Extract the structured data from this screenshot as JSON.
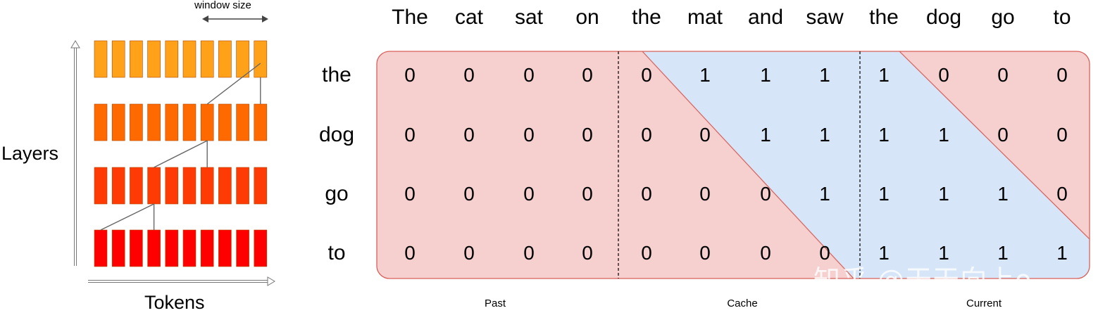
{
  "left_diagram": {
    "window_label": "window size",
    "layers_label": "Layers",
    "tokens_label": "Tokens",
    "layer_colors": [
      "#ff0000",
      "#ff3b05",
      "#ff6a00",
      "#ffa21a"
    ]
  },
  "matrix": {
    "column_words": [
      "The",
      "cat",
      "sat",
      "on",
      "the",
      "mat",
      "and",
      "saw",
      "the",
      "dog",
      "go",
      "to"
    ],
    "row_words": [
      "the",
      "dog",
      "go",
      "to"
    ],
    "values": [
      [
        0,
        0,
        0,
        0,
        0,
        1,
        1,
        1,
        1,
        0,
        0,
        0
      ],
      [
        0,
        0,
        0,
        0,
        0,
        0,
        1,
        1,
        1,
        1,
        0,
        0
      ],
      [
        0,
        0,
        0,
        0,
        0,
        0,
        0,
        1,
        1,
        1,
        1,
        0
      ],
      [
        0,
        0,
        0,
        0,
        0,
        0,
        0,
        0,
        1,
        1,
        1,
        1
      ]
    ],
    "section_labels": [
      "Past",
      "Cache",
      "Current"
    ],
    "colors": {
      "masked": "#f6cfcf",
      "masked_border": "#d9605a",
      "visible": "#d6e5f7",
      "visible_border": "#9bb8d9"
    }
  },
  "watermark": "知乎 @天天向上o"
}
